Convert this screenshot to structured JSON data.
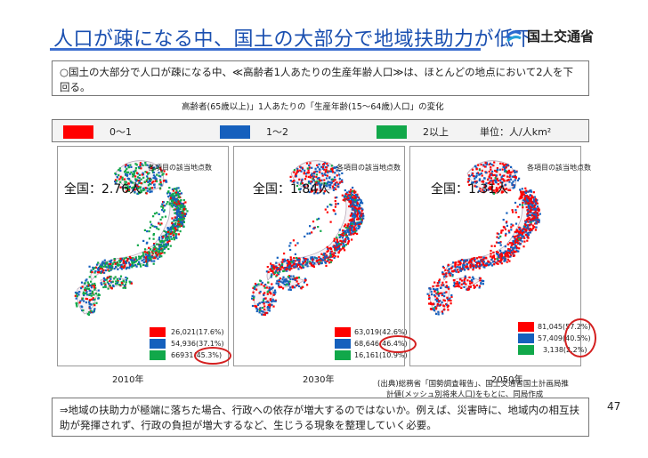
{
  "header": {
    "title": "人口が疎になる中、国土の大部分で地域扶助力が低下",
    "logo_text": "国土交通省"
  },
  "summary": "○国土の大部分で人口が疎になる中、≪高齢者1人あたりの生産年齢人口≫は、ほとんどの地点において2人を下回る。",
  "chart_caption": "高齢者(65歳以上)」1人あたりの「生産年齢(15〜64歳)人口」の変化",
  "legend": {
    "items": [
      {
        "label": "0〜1",
        "color": "#ff0000"
      },
      {
        "label": "1〜2",
        "color": "#1560bd"
      },
      {
        "label": "2以上",
        "color": "#11a84a"
      }
    ],
    "unit": "単位：人/人km²"
  },
  "maps": [
    {
      "year": "2010年",
      "national_label": "全国：",
      "national_value": "2.76人",
      "items_label": "各項目の該当地点数",
      "stats": [
        "26,021(17.6%)",
        "54,936(37.1%)",
        "66931(45.3%)"
      ]
    },
    {
      "year": "2030年",
      "national_label": "全国：",
      "national_value": "1.84人",
      "items_label": "各項目の該当地点数",
      "stats": [
        "63,019(42.6%)",
        "68,646(46.4%)",
        "16,161(10.9%)"
      ]
    },
    {
      "year": "2050年",
      "national_label": "全国：",
      "national_value": "1.31人",
      "items_label": "各項目の該当地点数",
      "stats": [
        "81,045(57.2%)",
        "57,409(40.5%)",
        "3,138(2.2%)"
      ]
    }
  ],
  "source": [
    "(出典)総務省「国勢調査報告」、国土交通省国土計画局推",
    "計値(メッシュ別将来人口)をもとに、同局作成"
  ],
  "conclusion": "⇒地域の扶助力が極端に落ちた場合、行政への依存が増大するのではないか。例えば、災害時に、地域内の相互扶助が発揮されず、行政の負担が増大するなど、生じうる現象を整理していく必要。",
  "page_number": "47"
}
